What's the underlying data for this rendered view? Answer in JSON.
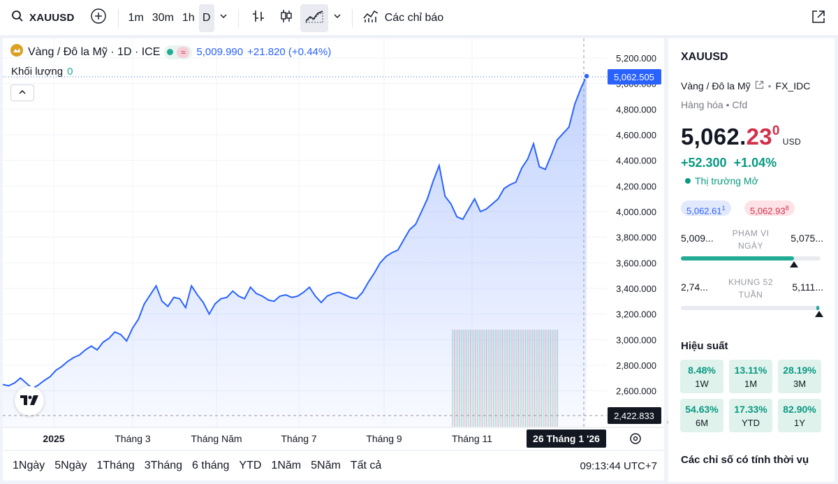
{
  "toolbar": {
    "symbol": "XAUUSD",
    "intervals": [
      "1m",
      "30m",
      "1h",
      "D"
    ],
    "active_interval": "D",
    "indicators_label": "Các chỉ báo"
  },
  "legend": {
    "title": "Vàng / Đô la Mỹ · 1D · ICE",
    "price": "5,009.990",
    "change": "+21.820 (+0.44%)",
    "volume_label": "Khối lượng",
    "volume_value": "0"
  },
  "price_axis": {
    "ticks": [
      "5,200.000",
      "5,000.000",
      "4,800.000",
      "4,600.000",
      "4,400.000",
      "4,200.000",
      "4,000.000",
      "3,800.000",
      "3,600.000",
      "3,400.000",
      "3,200.000",
      "3,000.000",
      "2,800.000",
      "2,600.000"
    ],
    "last_price_label": "5,062.505",
    "crosshair_price_label": "2,422.833"
  },
  "time_axis": {
    "labels": [
      "2025",
      "Tháng 3",
      "Tháng Năm",
      "Tháng 7",
      "Tháng 9",
      "Tháng 11"
    ],
    "crosshair_date": "26 Tháng 1 '26"
  },
  "range_bar": {
    "items": [
      "1Ngày",
      "5Ngày",
      "1Tháng",
      "3Tháng",
      "6 tháng",
      "YTD",
      "1Năm",
      "5Năm",
      "Tất cả"
    ],
    "time": "09:13:44 UTC+7"
  },
  "side": {
    "symbol": "XAUUSD",
    "description": "Vàng / Đô la Mỹ",
    "exchange": "FX_IDC",
    "category": "Hàng hóa",
    "type": "Cfd",
    "price_main": "5,062.",
    "price_red": "23",
    "price_sup": "0",
    "currency": "USD",
    "change": "+52.300",
    "change_pct": "+1.04%",
    "market_status": "Thị trường Mở",
    "bid": "5,062.61",
    "bid_sup": "1",
    "ask": "5,062.93",
    "ask_sup": "8",
    "day_range": {
      "low": "5,009...",
      "high": "5,075...",
      "label_1": "PHẠM VI",
      "label_2": "NGÀY",
      "position": 0.81
    },
    "week52_range": {
      "low": "2,74...",
      "high": "5,111...",
      "label_1": "KHUNG 52",
      "label_2": "TUẦN",
      "position": 0.99
    },
    "performance_title": "Hiệu suất",
    "performance": [
      {
        "value": "8.48%",
        "label": "1W"
      },
      {
        "value": "13.11%",
        "label": "1M"
      },
      {
        "value": "28.19%",
        "label": "3M"
      },
      {
        "value": "54.63%",
        "label": "6M"
      },
      {
        "value": "17.33%",
        "label": "YTD"
      },
      {
        "value": "82.90%",
        "label": "1Y"
      }
    ],
    "seasonal_title": "Các chỉ số có tính thời vụ"
  },
  "colors": {
    "line": "#2962ff",
    "up": "#089981",
    "down": "#d1304a",
    "accent_bg": "#e0f2ec"
  },
  "chart_data": {
    "type": "area",
    "ylim": [
      2422.833,
      5200
    ],
    "x_labels": [
      "2025",
      "Tháng 3",
      "Tháng Năm",
      "Tháng 7",
      "Tháng 9",
      "Tháng 11"
    ],
    "series": [
      {
        "values": [
          2650,
          2640,
          2662,
          2700,
          2660,
          2618,
          2645,
          2680,
          2710,
          2760,
          2790,
          2830,
          2860,
          2880,
          2920,
          2950,
          2920,
          2980,
          3010,
          3060,
          3040,
          2990,
          3090,
          3160,
          3280,
          3350,
          3420,
          3300,
          3260,
          3330,
          3320,
          3250,
          3420,
          3350,
          3290,
          3200,
          3280,
          3320,
          3330,
          3380,
          3340,
          3320,
          3410,
          3360,
          3340,
          3310,
          3300,
          3340,
          3350,
          3330,
          3340,
          3370,
          3410,
          3340,
          3290,
          3340,
          3360,
          3370,
          3350,
          3330,
          3320,
          3370,
          3450,
          3520,
          3600,
          3650,
          3680,
          3700,
          3780,
          3860,
          3900,
          4000,
          4100,
          4240,
          4360,
          4120,
          4060,
          3960,
          3940,
          4020,
          4100,
          4000,
          4020,
          4060,
          4100,
          4180,
          4210,
          4230,
          4340,
          4410,
          4530,
          4350,
          4330,
          4440,
          4560,
          4610,
          4660,
          4840,
          4960,
          5062
        ]
      }
    ],
    "volume_bars": 60
  }
}
